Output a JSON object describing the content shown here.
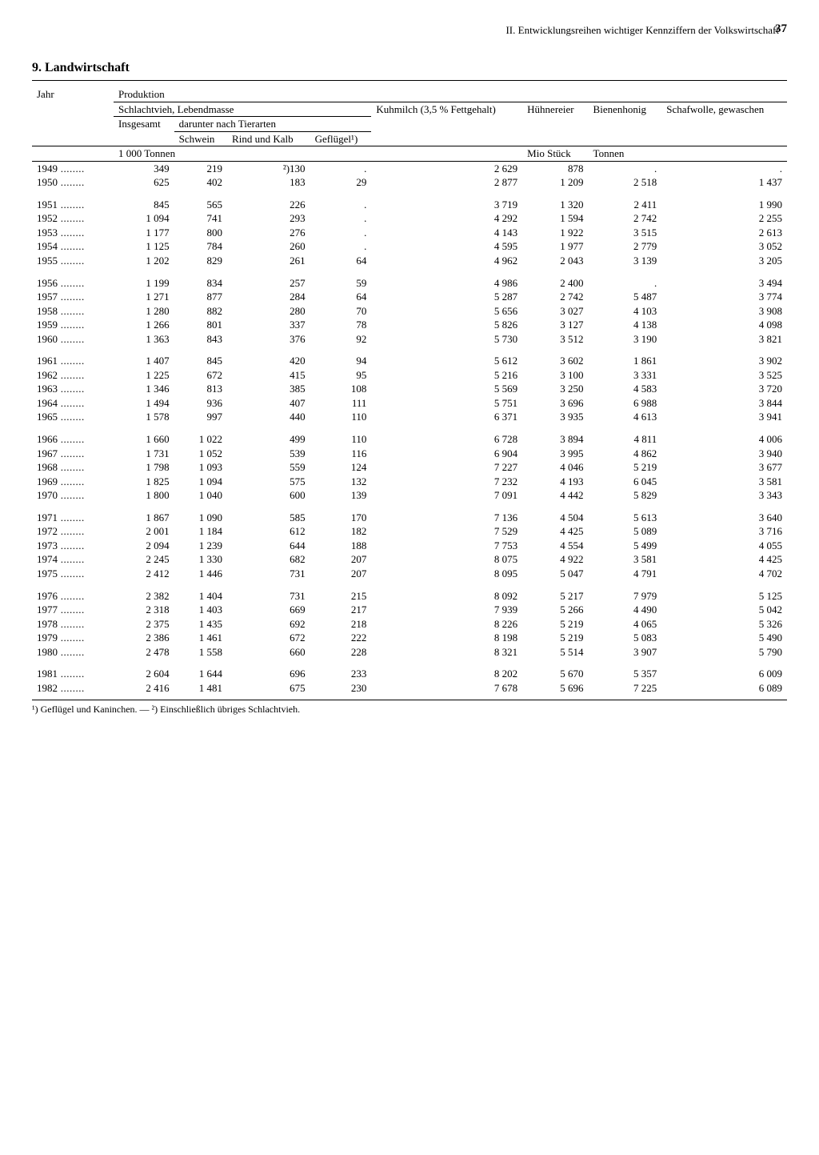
{
  "page": {
    "running_head": "II. Entwicklungsreihen wichtiger Kennziffern der Volkswirtschaft",
    "page_number": "37",
    "section_title": "9. Landwirtschaft"
  },
  "table": {
    "header": {
      "jahr": "Jahr",
      "produktion": "Produktion",
      "schlachtvieh": "Schlachtvieh, Lebendmasse",
      "insgesamt": "Insgesamt",
      "darunter": "darunter nach Tierarten",
      "schwein": "Schwein",
      "rind": "Rind und Kalb",
      "gefluegel": "Geflügel¹)",
      "kuhmilch": "Kuhmilch (3,5 % Fettgehalt)",
      "huehnereier": "Hühnereier",
      "bienenhonig": "Bienenhonig",
      "schafwolle": "Schafwolle, gewaschen",
      "unit_1000t": "1 000 Tonnen",
      "unit_mio": "Mio Stück",
      "unit_tonnen": "Tonnen"
    },
    "groups": [
      [
        {
          "y": "1949",
          "c": [
            "349",
            "219",
            "²)130",
            ".",
            "2 629",
            "878",
            ".",
            "."
          ]
        },
        {
          "y": "1950",
          "c": [
            "625",
            "402",
            "183",
            "29",
            "2 877",
            "1 209",
            "2 518",
            "1 437"
          ]
        }
      ],
      [
        {
          "y": "1951",
          "c": [
            "845",
            "565",
            "226",
            ".",
            "3 719",
            "1 320",
            "2 411",
            "1 990"
          ]
        },
        {
          "y": "1952",
          "c": [
            "1 094",
            "741",
            "293",
            ".",
            "4 292",
            "1 594",
            "2 742",
            "2 255"
          ]
        },
        {
          "y": "1953",
          "c": [
            "1 177",
            "800",
            "276",
            ".",
            "4 143",
            "1 922",
            "3 515",
            "2 613"
          ]
        },
        {
          "y": "1954",
          "c": [
            "1 125",
            "784",
            "260",
            ".",
            "4 595",
            "1 977",
            "2 779",
            "3 052"
          ]
        },
        {
          "y": "1955",
          "c": [
            "1 202",
            "829",
            "261",
            "64",
            "4 962",
            "2 043",
            "3 139",
            "3 205"
          ]
        }
      ],
      [
        {
          "y": "1956",
          "c": [
            "1 199",
            "834",
            "257",
            "59",
            "4 986",
            "2 400",
            ".",
            "3 494"
          ]
        },
        {
          "y": "1957",
          "c": [
            "1 271",
            "877",
            "284",
            "64",
            "5 287",
            "2 742",
            "5 487",
            "3 774"
          ]
        },
        {
          "y": "1958",
          "c": [
            "1 280",
            "882",
            "280",
            "70",
            "5 656",
            "3 027",
            "4 103",
            "3 908"
          ]
        },
        {
          "y": "1959",
          "c": [
            "1 266",
            "801",
            "337",
            "78",
            "5 826",
            "3 127",
            "4 138",
            "4 098"
          ]
        },
        {
          "y": "1960",
          "c": [
            "1 363",
            "843",
            "376",
            "92",
            "5 730",
            "3 512",
            "3 190",
            "3 821"
          ]
        }
      ],
      [
        {
          "y": "1961",
          "c": [
            "1 407",
            "845",
            "420",
            "94",
            "5 612",
            "3 602",
            "1 861",
            "3 902"
          ]
        },
        {
          "y": "1962",
          "c": [
            "1 225",
            "672",
            "415",
            "95",
            "5 216",
            "3 100",
            "3 331",
            "3 525"
          ]
        },
        {
          "y": "1963",
          "c": [
            "1 346",
            "813",
            "385",
            "108",
            "5 569",
            "3 250",
            "4 583",
            "3 720"
          ]
        },
        {
          "y": "1964",
          "c": [
            "1 494",
            "936",
            "407",
            "111",
            "5 751",
            "3 696",
            "6 988",
            "3 844"
          ]
        },
        {
          "y": "1965",
          "c": [
            "1 578",
            "997",
            "440",
            "110",
            "6 371",
            "3 935",
            "4 613",
            "3 941"
          ]
        }
      ],
      [
        {
          "y": "1966",
          "c": [
            "1 660",
            "1 022",
            "499",
            "110",
            "6 728",
            "3 894",
            "4 811",
            "4 006"
          ]
        },
        {
          "y": "1967",
          "c": [
            "1 731",
            "1 052",
            "539",
            "116",
            "6 904",
            "3 995",
            "4 862",
            "3 940"
          ]
        },
        {
          "y": "1968",
          "c": [
            "1 798",
            "1 093",
            "559",
            "124",
            "7 227",
            "4 046",
            "5 219",
            "3 677"
          ]
        },
        {
          "y": "1969",
          "c": [
            "1 825",
            "1 094",
            "575",
            "132",
            "7 232",
            "4 193",
            "6 045",
            "3 581"
          ]
        },
        {
          "y": "1970",
          "c": [
            "1 800",
            "1 040",
            "600",
            "139",
            "7 091",
            "4 442",
            "5 829",
            "3 343"
          ]
        }
      ],
      [
        {
          "y": "1971",
          "c": [
            "1 867",
            "1 090",
            "585",
            "170",
            "7 136",
            "4 504",
            "5 613",
            "3 640"
          ]
        },
        {
          "y": "1972",
          "c": [
            "2 001",
            "1 184",
            "612",
            "182",
            "7 529",
            "4 425",
            "5 089",
            "3 716"
          ]
        },
        {
          "y": "1973",
          "c": [
            "2 094",
            "1 239",
            "644",
            "188",
            "7 753",
            "4 554",
            "5 499",
            "4 055"
          ]
        },
        {
          "y": "1974",
          "c": [
            "2 245",
            "1 330",
            "682",
            "207",
            "8 075",
            "4 922",
            "3 581",
            "4 425"
          ]
        },
        {
          "y": "1975",
          "c": [
            "2 412",
            "1 446",
            "731",
            "207",
            "8 095",
            "5 047",
            "4 791",
            "4 702"
          ]
        }
      ],
      [
        {
          "y": "1976",
          "c": [
            "2 382",
            "1 404",
            "731",
            "215",
            "8 092",
            "5 217",
            "7 979",
            "5 125"
          ]
        },
        {
          "y": "1977",
          "c": [
            "2 318",
            "1 403",
            "669",
            "217",
            "7 939",
            "5 266",
            "4 490",
            "5 042"
          ]
        },
        {
          "y": "1978",
          "c": [
            "2 375",
            "1 435",
            "692",
            "218",
            "8 226",
            "5 219",
            "4 065",
            "5 326"
          ]
        },
        {
          "y": "1979",
          "c": [
            "2 386",
            "1 461",
            "672",
            "222",
            "8 198",
            "5 219",
            "5 083",
            "5 490"
          ]
        },
        {
          "y": "1980",
          "c": [
            "2 478",
            "1 558",
            "660",
            "228",
            "8 321",
            "5 514",
            "3 907",
            "5 790"
          ]
        }
      ],
      [
        {
          "y": "1981",
          "c": [
            "2 604",
            "1 644",
            "696",
            "233",
            "8 202",
            "5 670",
            "5 357",
            "6 009"
          ]
        },
        {
          "y": "1982",
          "c": [
            "2 416",
            "1 481",
            "675",
            "230",
            "7 678",
            "5 696",
            "7 225",
            "6 089"
          ]
        }
      ]
    ]
  },
  "footnote": "¹) Geflügel und Kaninchen. — ²) Einschließlich übriges Schlachtvieh."
}
